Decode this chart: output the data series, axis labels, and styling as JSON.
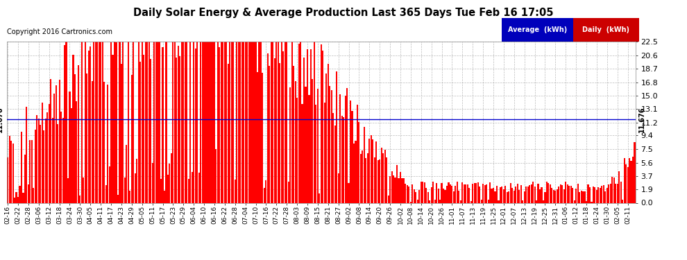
{
  "title": "Daily Solar Energy & Average Production Last 365 Days Tue Feb 16 17:05",
  "copyright_text": "Copyright 2016 Cartronics.com",
  "average_value": 11.676,
  "y_ticks": [
    0.0,
    1.9,
    3.7,
    5.6,
    7.5,
    9.4,
    11.2,
    13.1,
    15.0,
    16.8,
    18.7,
    20.6,
    22.5
  ],
  "ylim": [
    0.0,
    22.5
  ],
  "bar_color": "#ff0000",
  "avg_line_color": "#0000cc",
  "background_color": "#ffffff",
  "grid_color": "#aaaaaa",
  "legend_avg_bg": "#0000bb",
  "legend_daily_bg": "#cc0000",
  "x_tick_labels": [
    "02-16",
    "02-22",
    "02-28",
    "03-06",
    "03-12",
    "03-18",
    "03-24",
    "03-30",
    "04-05",
    "04-11",
    "04-17",
    "04-23",
    "04-29",
    "05-05",
    "05-11",
    "05-17",
    "05-23",
    "05-29",
    "06-04",
    "06-10",
    "06-16",
    "06-22",
    "06-28",
    "07-04",
    "07-10",
    "07-16",
    "07-22",
    "07-28",
    "08-03",
    "08-09",
    "08-15",
    "08-21",
    "08-27",
    "09-02",
    "09-08",
    "09-14",
    "09-20",
    "09-26",
    "10-02",
    "10-08",
    "10-14",
    "10-20",
    "10-26",
    "11-01",
    "11-07",
    "11-13",
    "11-19",
    "11-25",
    "12-01",
    "12-07",
    "12-13",
    "12-19",
    "12-25",
    "12-31",
    "01-06",
    "01-12",
    "01-18",
    "01-24",
    "01-30",
    "02-05",
    "02-11"
  ],
  "n_days": 365,
  "seed": 42
}
